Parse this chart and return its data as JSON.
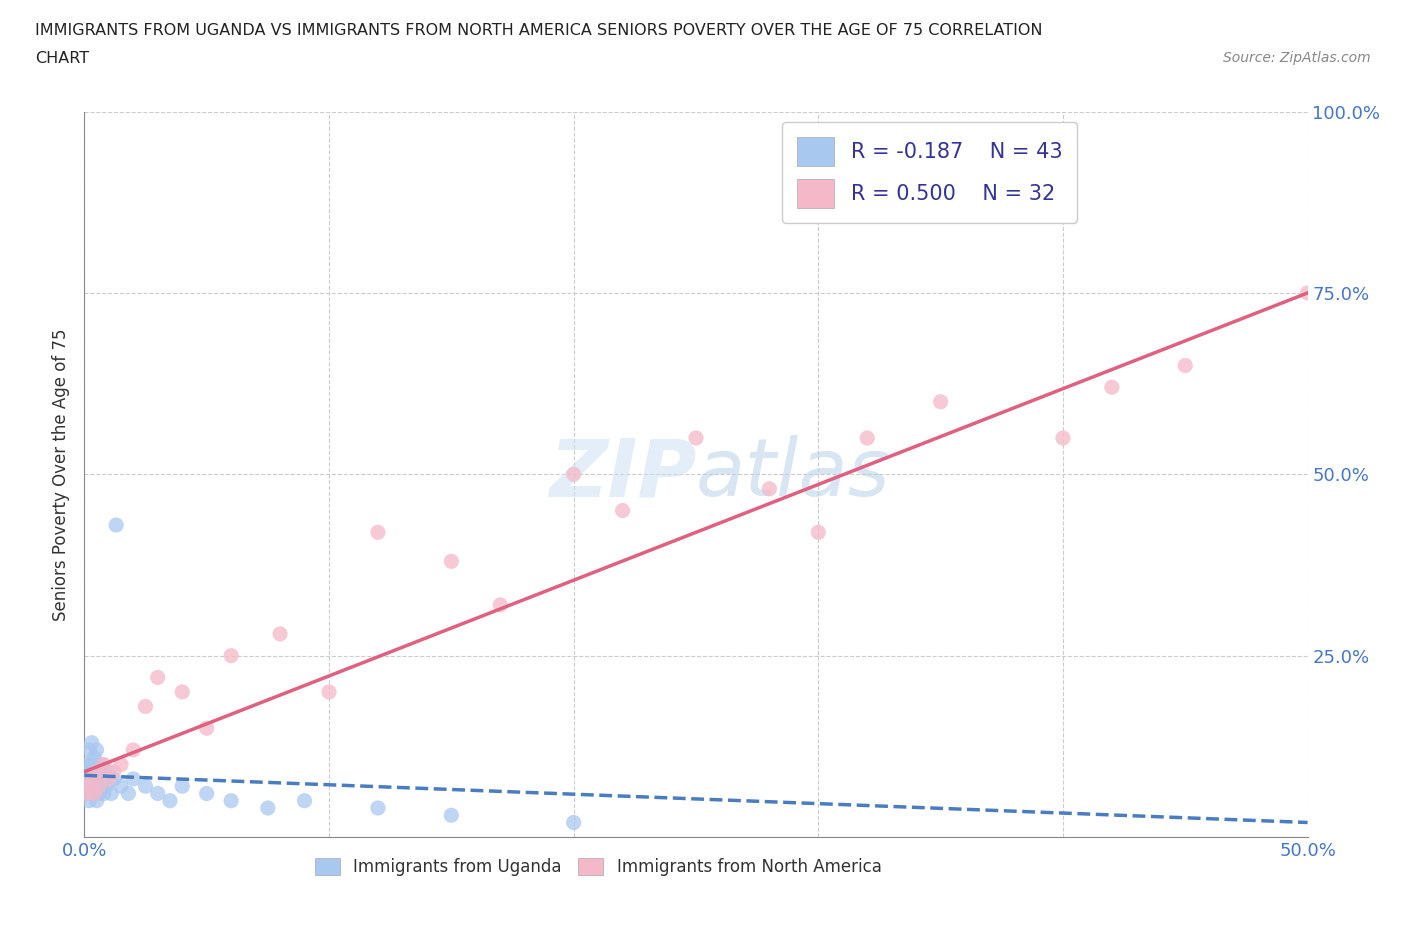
{
  "title_line1": "IMMIGRANTS FROM UGANDA VS IMMIGRANTS FROM NORTH AMERICA SENIORS POVERTY OVER THE AGE OF 75 CORRELATION",
  "title_line2": "CHART",
  "source_text": "Source: ZipAtlas.com",
  "ylabel": "Seniors Poverty Over the Age of 75",
  "xlim": [
    0,
    0.5
  ],
  "ylim": [
    0,
    1.0
  ],
  "legend_r1": "R = -0.187",
  "legend_n1": "N = 43",
  "legend_r2": "R = 0.500",
  "legend_n2": "N = 32",
  "color_uganda": "#a8c8f0",
  "color_north_america": "#f5b8c8",
  "color_uganda_line": "#4a7cc0",
  "color_north_america_line": "#e06080",
  "grid_color": "#cccccc",
  "uganda_x": [
    0.001,
    0.001,
    0.001,
    0.002,
    0.002,
    0.002,
    0.002,
    0.003,
    0.003,
    0.003,
    0.003,
    0.004,
    0.004,
    0.004,
    0.005,
    0.005,
    0.005,
    0.005,
    0.006,
    0.006,
    0.007,
    0.007,
    0.008,
    0.008,
    0.009,
    0.01,
    0.011,
    0.012,
    0.013,
    0.015,
    0.018,
    0.02,
    0.025,
    0.03,
    0.035,
    0.04,
    0.05,
    0.06,
    0.075,
    0.09,
    0.12,
    0.15,
    0.2
  ],
  "uganda_y": [
    0.06,
    0.08,
    0.1,
    0.05,
    0.07,
    0.09,
    0.12,
    0.06,
    0.08,
    0.1,
    0.13,
    0.07,
    0.09,
    0.11,
    0.05,
    0.08,
    0.1,
    0.12,
    0.06,
    0.09,
    0.07,
    0.1,
    0.06,
    0.08,
    0.07,
    0.09,
    0.06,
    0.08,
    0.43,
    0.07,
    0.06,
    0.08,
    0.07,
    0.06,
    0.05,
    0.07,
    0.06,
    0.05,
    0.04,
    0.05,
    0.04,
    0.03,
    0.02
  ],
  "north_america_x": [
    0.001,
    0.002,
    0.003,
    0.004,
    0.005,
    0.006,
    0.008,
    0.01,
    0.012,
    0.015,
    0.02,
    0.025,
    0.03,
    0.04,
    0.05,
    0.06,
    0.08,
    0.1,
    0.12,
    0.15,
    0.17,
    0.2,
    0.22,
    0.25,
    0.28,
    0.3,
    0.32,
    0.35,
    0.4,
    0.42,
    0.45,
    0.5
  ],
  "north_america_y": [
    0.06,
    0.07,
    0.08,
    0.06,
    0.09,
    0.07,
    0.1,
    0.08,
    0.09,
    0.1,
    0.12,
    0.18,
    0.22,
    0.2,
    0.15,
    0.25,
    0.28,
    0.2,
    0.42,
    0.38,
    0.32,
    0.5,
    0.45,
    0.55,
    0.48,
    0.42,
    0.55,
    0.6,
    0.55,
    0.62,
    0.65,
    0.75
  ],
  "uganda_trend_x0": 0.0,
  "uganda_trend_y0": 0.085,
  "uganda_trend_x1": 0.5,
  "uganda_trend_y1": 0.02,
  "na_trend_x0": 0.0,
  "na_trend_y0": 0.09,
  "na_trend_x1": 0.5,
  "na_trend_y1": 0.75
}
